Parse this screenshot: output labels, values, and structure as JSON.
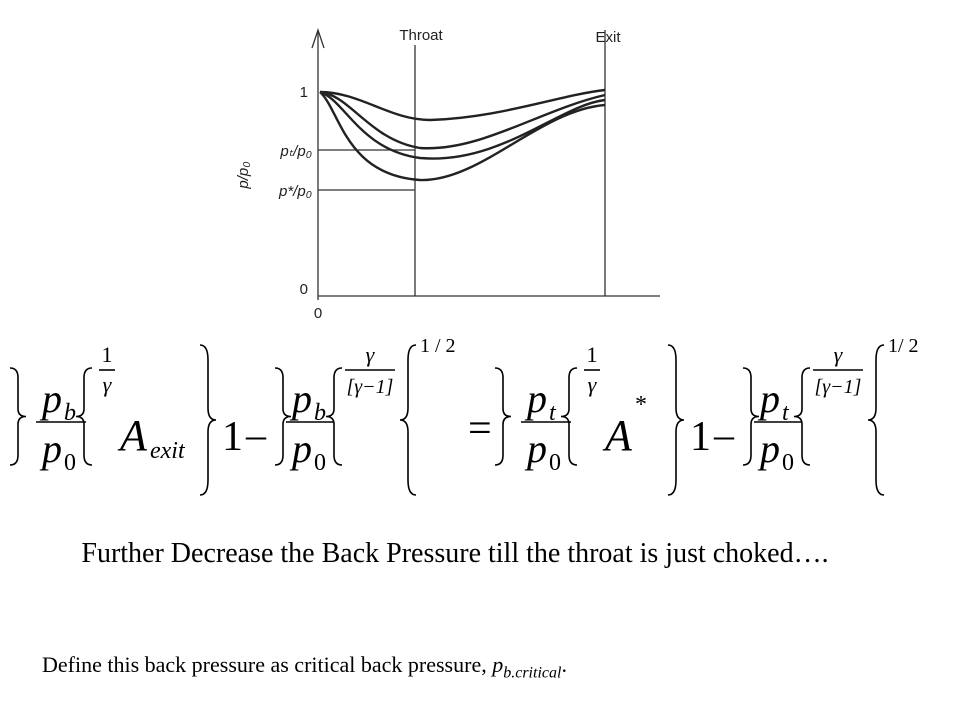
{
  "diagram": {
    "y_axis_label": "p/p₀",
    "throat_label": "Throat",
    "exit_label": "Exit",
    "level_one": "1",
    "level_throat": "pₜ/p₀",
    "level_star": "p*/p₀",
    "level_zero": "0",
    "origin_x": "0"
  },
  "equation": {
    "lhs": {
      "num": "p",
      "num_sub": "b",
      "den": "p",
      "den_sub": "0",
      "exp1_num": "1",
      "exp1_den": "γ",
      "area": "A",
      "area_sub": "exit",
      "one": "1",
      "minus": "–",
      "exp2_num": "γ",
      "exp2_den": "[γ−1]",
      "outer_exp": "1 / 2"
    },
    "equals": "=",
    "rhs": {
      "num": "p",
      "num_sub": "t",
      "den": "p",
      "den_sub": "0",
      "exp1_num": "1",
      "exp1_den": "γ",
      "area": "A",
      "area_sup": "*",
      "one": "1",
      "minus": "–",
      "exp2_num": "γ",
      "exp2_den": "[γ−1]",
      "outer_exp": "1/ 2"
    }
  },
  "statement": "Further Decrease the Back Pressure till the throat is just choked….",
  "definition": {
    "text": "Define this back pressure as critical back pressure,",
    "symbol": "p",
    "subscript": "b.critical",
    "end": "."
  }
}
